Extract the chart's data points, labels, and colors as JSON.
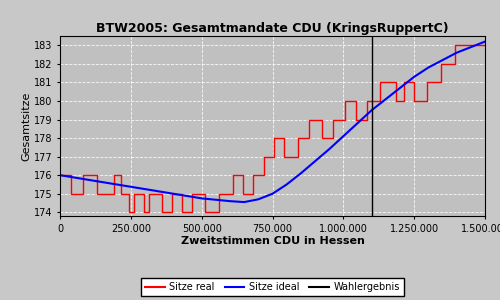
{
  "title": "BTW2005: Gesamtmandate CDU (KringsRuppertC)",
  "xlabel": "Zweitstimmen CDU in Hessen",
  "ylabel": "Gesamtsitze",
  "background_color": "#c0c0c0",
  "fig_background_color": "#c8c8c8",
  "wahlergebnis": 1100000,
  "xlim": [
    0,
    1500000
  ],
  "ylim": [
    173.8,
    183.5
  ],
  "yticks": [
    174,
    175,
    176,
    177,
    178,
    179,
    180,
    181,
    182,
    183
  ],
  "xticks": [
    0,
    250000,
    500000,
    750000,
    1000000,
    1250000,
    1500000
  ],
  "legend_labels": [
    "Sitze real",
    "Sitze ideal",
    "Wahlergebnis"
  ],
  "ideal_x": [
    0,
    100000,
    200000,
    300000,
    400000,
    500000,
    600000,
    650000,
    700000,
    750000,
    800000,
    850000,
    900000,
    950000,
    1000000,
    1050000,
    1100000,
    1150000,
    1200000,
    1250000,
    1300000,
    1350000,
    1400000,
    1450000,
    1500000
  ],
  "ideal_y": [
    176.0,
    175.75,
    175.5,
    175.25,
    175.0,
    174.75,
    174.6,
    174.55,
    174.7,
    175.0,
    175.5,
    176.1,
    176.75,
    177.4,
    178.1,
    178.8,
    179.5,
    180.1,
    180.7,
    181.3,
    181.8,
    182.2,
    182.6,
    182.9,
    183.2
  ],
  "real_steps_x": [
    0,
    40000,
    40000,
    80000,
    80000,
    130000,
    130000,
    190000,
    190000,
    215000,
    215000,
    245000,
    245000,
    260000,
    260000,
    295000,
    295000,
    315000,
    315000,
    360000,
    360000,
    395000,
    395000,
    430000,
    430000,
    465000,
    465000,
    510000,
    510000,
    560000,
    560000,
    610000,
    610000,
    645000,
    645000,
    680000,
    680000,
    720000,
    720000,
    755000,
    755000,
    790000,
    790000,
    840000,
    840000,
    880000,
    880000,
    925000,
    925000,
    965000,
    965000,
    1005000,
    1005000,
    1045000,
    1045000,
    1085000,
    1085000,
    1130000,
    1130000,
    1185000,
    1185000,
    1215000,
    1215000,
    1250000,
    1250000,
    1295000,
    1295000,
    1345000,
    1345000,
    1395000,
    1395000,
    1500000
  ],
  "real_steps_y": [
    176,
    176,
    175,
    175,
    176,
    176,
    175,
    175,
    176,
    176,
    175,
    175,
    174,
    174,
    175,
    175,
    174,
    174,
    175,
    175,
    174,
    174,
    175,
    175,
    174,
    174,
    175,
    175,
    174,
    174,
    175,
    175,
    176,
    176,
    175,
    175,
    176,
    176,
    177,
    177,
    178,
    178,
    177,
    177,
    178,
    178,
    179,
    179,
    178,
    178,
    179,
    179,
    180,
    180,
    179,
    179,
    180,
    180,
    181,
    181,
    180,
    180,
    181,
    181,
    180,
    180,
    181,
    181,
    182,
    182,
    183,
    183
  ]
}
